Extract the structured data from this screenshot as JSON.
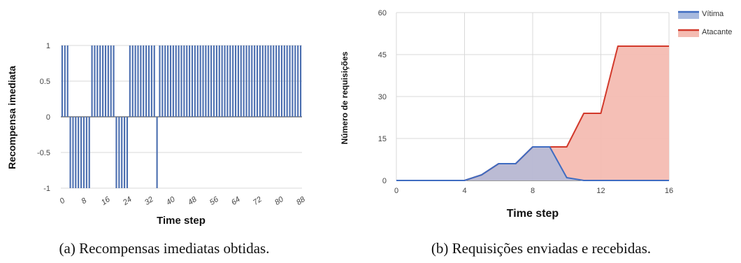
{
  "captions": {
    "a": "(a) Recompensas imediatas obtidas.",
    "b": "(b) Requisições enviadas e recebidas."
  },
  "colors": {
    "bar": "#4c6fb0",
    "vitima_line": "#3f6cc1",
    "vitima_fill": "#a7b9de",
    "atacante_line": "#d2392b",
    "atacante_fill": "#f4bcb2",
    "grid": "#d9d9d9"
  },
  "chart_data": [
    {
      "type": "bar",
      "title": "",
      "xlabel": "Time step",
      "ylabel": "Recompensa imediata",
      "xlim": [
        0,
        89
      ],
      "ylim": [
        -1,
        1
      ],
      "x_ticks": [
        "0",
        "8",
        "16",
        "24",
        "32",
        "40",
        "48",
        "56",
        "64",
        "72",
        "80",
        "88"
      ],
      "y_ticks": [
        "1",
        "0.5",
        "0",
        "-0.5",
        "-1"
      ],
      "grid": "horizontal",
      "x": [
        0,
        1,
        2,
        3,
        4,
        5,
        6,
        7,
        8,
        9,
        10,
        11,
        12,
        13,
        14,
        15,
        16,
        17,
        18,
        19,
        20,
        21,
        22,
        23,
        24,
        25,
        26,
        27,
        28,
        29,
        30,
        31,
        32,
        33,
        34,
        35,
        36,
        37,
        38,
        39,
        40,
        41,
        42,
        43,
        44,
        45,
        46,
        47,
        48,
        49,
        50,
        51,
        52,
        53,
        54,
        55,
        56,
        57,
        58,
        59,
        60,
        61,
        62,
        63,
        64,
        65,
        66,
        67,
        68,
        69,
        70,
        71,
        72,
        73,
        74,
        75,
        76,
        77,
        78,
        79,
        80,
        81,
        82,
        83,
        84,
        85,
        86,
        87,
        88
      ],
      "values": [
        1,
        1,
        1,
        -1,
        -1,
        -1,
        -1,
        -1,
        -1,
        -1,
        -1,
        1,
        1,
        1,
        1,
        1,
        1,
        1,
        1,
        1,
        -1,
        -1,
        -1,
        -1,
        -1,
        1,
        1,
        1,
        1,
        1,
        1,
        1,
        1,
        1,
        1,
        -1,
        1,
        1,
        1,
        1,
        1,
        1,
        1,
        1,
        1,
        1,
        1,
        1,
        1,
        1,
        1,
        1,
        1,
        1,
        1,
        1,
        1,
        1,
        1,
        1,
        1,
        1,
        1,
        1,
        1,
        1,
        1,
        1,
        1,
        1,
        1,
        1,
        1,
        1,
        1,
        1,
        1,
        1,
        1,
        1,
        1,
        1,
        1,
        1,
        1,
        1,
        1,
        1,
        1
      ]
    },
    {
      "type": "area",
      "title": "",
      "xlabel": "Time step",
      "ylabel": "Número de requisições",
      "xlim": [
        0,
        16
      ],
      "ylim": [
        0,
        60
      ],
      "x_ticks": [
        "0",
        "4",
        "8",
        "12",
        "16"
      ],
      "y_ticks": [
        "60",
        "45",
        "30",
        "15",
        "0"
      ],
      "grid": "on",
      "legend": "top-right",
      "x": [
        0,
        1,
        2,
        3,
        4,
        5,
        6,
        7,
        8,
        9,
        10,
        11,
        12,
        13,
        14,
        15,
        16
      ],
      "series": [
        {
          "name": "Vítima",
          "values": [
            0,
            0,
            0,
            0,
            0,
            2,
            6,
            6,
            12,
            12,
            1,
            0,
            0,
            0,
            0,
            0,
            0
          ]
        },
        {
          "name": "Atacante",
          "values": [
            0,
            0,
            0,
            0,
            0,
            2,
            6,
            6,
            12,
            12,
            12,
            24,
            24,
            48,
            48,
            48,
            48
          ]
        }
      ]
    }
  ]
}
